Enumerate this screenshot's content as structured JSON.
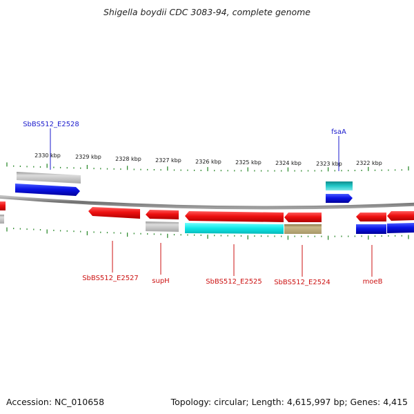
{
  "title": "Shigella boydii CDC 3083-94, complete genome",
  "footer": {
    "accession": "Accession: NC_010658",
    "summary": "Topology: circular; Length: 4,615,997 bp; Genes: 4,415"
  },
  "scale": {
    "unit": "kbp",
    "tick_labels": [
      "2330 kbp",
      "2329 kbp",
      "2328 kbp",
      "2327 kbp",
      "2326 kbp",
      "2325 kbp",
      "2324 kbp",
      "2323 kbp",
      "2322 kbp"
    ]
  },
  "colors": {
    "backbone": "#8a8a8a",
    "ticks": "#2e8b2e",
    "label_blue": "#1a1acc",
    "label_red": "#cc1111",
    "red": "#ee1111",
    "blue": "#0a14e6",
    "gray": "#b0b0b0",
    "cyan": "#10e0e0",
    "teal": "#20c8c8",
    "olive": "#b8a878"
  },
  "genes": [
    {
      "label": "SbBS512_E2528",
      "color": "blue"
    },
    {
      "label": "fsaA",
      "color": "blue"
    },
    {
      "label": "SbBS512_E2527",
      "color": "red"
    },
    {
      "label": "supH",
      "color": "red"
    },
    {
      "label": "SbBS512_E2525",
      "color": "red"
    },
    {
      "label": "SbBS512_E2524",
      "color": "red"
    },
    {
      "label": "moeB",
      "color": "red"
    }
  ]
}
